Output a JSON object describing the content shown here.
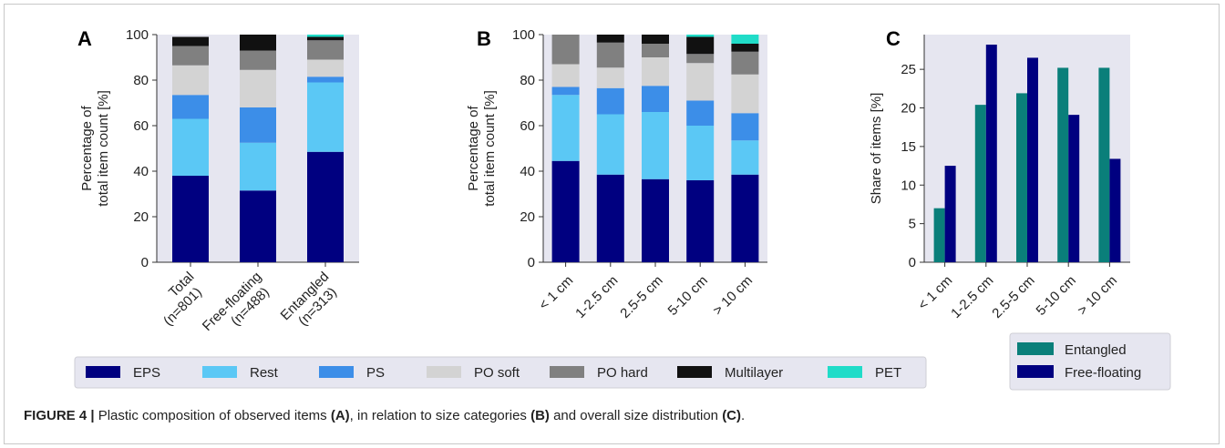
{
  "caption": {
    "figure_label": "FIGURE 4 |",
    "text_1": " Plastic composition of observed items ",
    "ref_a": "(A)",
    "text_2": ", in relation to size categories ",
    "ref_b": "(B)",
    "text_3": " and overall size distribution ",
    "ref_c": "(C)",
    "text_4": "."
  },
  "colors": {
    "EPS": "#000080",
    "Rest": "#5bc8f5",
    "PS": "#3c8ee8",
    "PO soft": "#d3d3d3",
    "PO hard": "#808080",
    "Multilayer": "#111111",
    "PET": "#20dcc8",
    "Entangled": "#0a7f7a",
    "Free-floating": "#000080",
    "plot_bg": "#e6e6f0"
  },
  "chart_data": [
    {
      "panel": "A",
      "type": "bar",
      "stacked": true,
      "ylabel": "Percentage of\ntotal item count [%]",
      "ylim": [
        0,
        100
      ],
      "yticks": [
        0,
        20,
        40,
        60,
        80,
        100
      ],
      "categories": [
        "Total\n(n=801)",
        "Free-floating\n(n=488)",
        "Entangled\n(n=313)"
      ],
      "series": [
        {
          "name": "EPS",
          "values": [
            38,
            31.5,
            48.5
          ]
        },
        {
          "name": "Rest",
          "values": [
            25,
            21,
            30.5
          ]
        },
        {
          "name": "PS",
          "values": [
            10.5,
            15.5,
            2.5
          ]
        },
        {
          "name": "PO soft",
          "values": [
            13,
            16.5,
            7.5
          ]
        },
        {
          "name": "PO hard",
          "values": [
            8.5,
            8.5,
            8.5
          ]
        },
        {
          "name": "Multilayer",
          "values": [
            4,
            7,
            1.5
          ]
        },
        {
          "name": "PET",
          "values": [
            0,
            0,
            1
          ]
        }
      ]
    },
    {
      "panel": "B",
      "type": "bar",
      "stacked": true,
      "ylabel": "Percentage of\ntotal item count [%]",
      "ylim": [
        0,
        100
      ],
      "yticks": [
        0,
        20,
        40,
        60,
        80,
        100
      ],
      "categories": [
        "< 1 cm",
        "1-2.5 cm",
        "2.5-5 cm",
        "5-10 cm",
        "> 10 cm"
      ],
      "series": [
        {
          "name": "EPS",
          "values": [
            44.5,
            38.5,
            36.5,
            36,
            38.5
          ]
        },
        {
          "name": "Rest",
          "values": [
            29,
            26.5,
            29.5,
            24,
            15
          ]
        },
        {
          "name": "PS",
          "values": [
            3.5,
            11.5,
            11.5,
            11,
            12
          ]
        },
        {
          "name": "PO soft",
          "values": [
            10,
            9,
            12.5,
            16.5,
            17
          ]
        },
        {
          "name": "PO hard",
          "values": [
            13,
            11,
            6,
            4,
            10
          ]
        },
        {
          "name": "Multilayer",
          "values": [
            0,
            3.5,
            4,
            7.5,
            3.5
          ]
        },
        {
          "name": "PET",
          "values": [
            0,
            0,
            0,
            1,
            4
          ]
        }
      ]
    },
    {
      "panel": "C",
      "type": "bar",
      "stacked": false,
      "ylabel": "Share of items [%]",
      "ylim": [
        0,
        29.5
      ],
      "yticks": [
        0,
        5,
        10,
        15,
        20,
        25
      ],
      "categories": [
        "< 1 cm",
        "1-2.5 cm",
        "2.5-5 cm",
        "5-10 cm",
        "> 10 cm"
      ],
      "series": [
        {
          "name": "Entangled",
          "values": [
            7,
            20.4,
            21.9,
            25.2,
            25.2
          ]
        },
        {
          "name": "Free-floating",
          "values": [
            12.5,
            28.2,
            26.5,
            19.1,
            13.4
          ]
        }
      ]
    }
  ],
  "legend_main": [
    "EPS",
    "Rest",
    "PS",
    "PO soft",
    "PO hard",
    "Multilayer",
    "PET"
  ],
  "legend_c": [
    "Entangled",
    "Free-floating"
  ]
}
